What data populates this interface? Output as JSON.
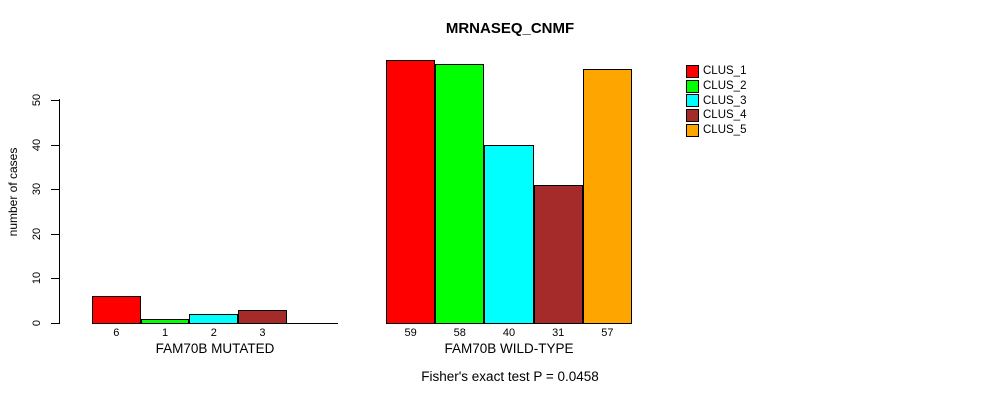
{
  "chart_data": {
    "type": "bar",
    "title": "MRNASEQ_CNMF",
    "ylabel": "number of cases",
    "xlabel": "",
    "yticks": [
      0,
      10,
      20,
      30,
      40,
      50
    ],
    "ylim": [
      0,
      59
    ],
    "grid": false,
    "legend_position": "right",
    "series": [
      {
        "name": "CLUS_1",
        "color": "#ff0000"
      },
      {
        "name": "CLUS_2",
        "color": "#00ff00"
      },
      {
        "name": "CLUS_3",
        "color": "#00ffff"
      },
      {
        "name": "CLUS_4",
        "color": "#a52a2a"
      },
      {
        "name": "CLUS_5",
        "color": "#ffa500"
      }
    ],
    "groups": [
      {
        "label": "FAM70B MUTATED",
        "values": [
          6,
          1,
          2,
          3,
          0
        ]
      },
      {
        "label": "FAM70B WILD-TYPE",
        "values": [
          59,
          58,
          40,
          31,
          57
        ]
      }
    ],
    "annotation": "Fisher's exact test P = 0.0458"
  }
}
